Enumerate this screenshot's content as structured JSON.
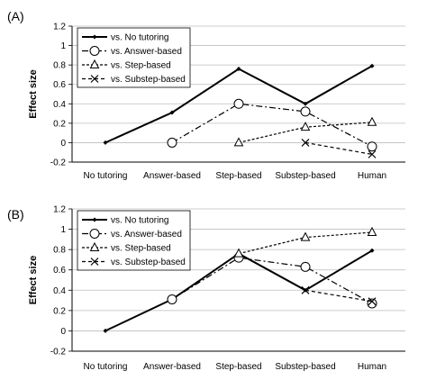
{
  "chart_data": [
    {
      "type": "line",
      "panel_label": "(A)",
      "ylabel": "Effect size",
      "categories": [
        "No tutoring",
        "Answer-based",
        "Step-based",
        "Substep-based",
        "Human"
      ],
      "yticks": [
        "1.2",
        "1",
        "0.8",
        "0.6",
        "0.4",
        "0.2",
        "0",
        "-0.2"
      ],
      "ylim": [
        -0.2,
        1.2
      ],
      "grid": true,
      "legend_position": "top-left",
      "series": [
        {
          "name": "vs. No tutoring",
          "values": [
            0,
            0.31,
            0.76,
            0.4,
            0.79
          ]
        },
        {
          "name": "vs. Answer-based",
          "values": [
            null,
            0,
            0.4,
            0.32,
            -0.04
          ]
        },
        {
          "name": "vs. Step-based",
          "values": [
            null,
            null,
            0,
            0.16,
            0.21
          ]
        },
        {
          "name": "vs. Substep-based",
          "values": [
            null,
            null,
            null,
            0,
            -0.12
          ]
        }
      ]
    },
    {
      "type": "line",
      "panel_label": "(B)",
      "ylabel": "Effect size",
      "categories": [
        "No tutoring",
        "Answer-based",
        "Step-based",
        "Substep-based",
        "Human"
      ],
      "yticks": [
        "1.2",
        "1",
        "0.8",
        "0.6",
        "0.4",
        "0.2",
        "0",
        "-0.2"
      ],
      "ylim": [
        -0.2,
        1.2
      ],
      "grid": true,
      "legend_position": "top-left",
      "series": [
        {
          "name": "vs. No tutoring",
          "values": [
            0,
            0.31,
            0.76,
            0.4,
            0.79
          ]
        },
        {
          "name": "vs. Answer-based",
          "values": [
            null,
            0.31,
            0.72,
            0.63,
            0.27
          ]
        },
        {
          "name": "vs. Step-based",
          "values": [
            null,
            null,
            0.76,
            0.92,
            0.97
          ]
        },
        {
          "name": "vs. Substep-based",
          "values": [
            null,
            null,
            null,
            0.4,
            0.29
          ]
        }
      ]
    }
  ]
}
